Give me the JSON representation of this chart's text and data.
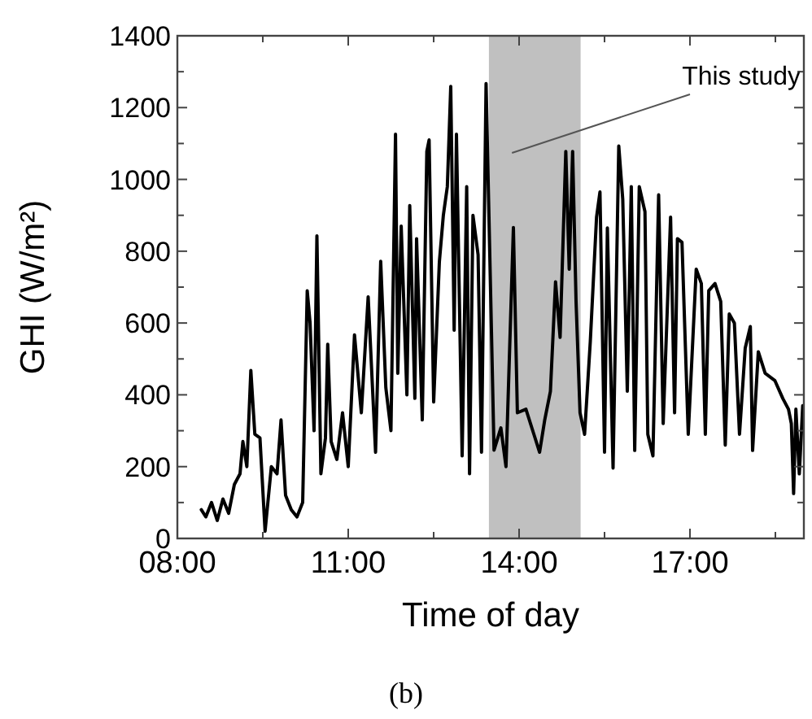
{
  "chart_data": {
    "type": "line",
    "xlabel": "Time of day",
    "ylabel": "GHI (W/m²)",
    "annotations": [
      "(b)"
    ],
    "xlim": [
      8,
      19
    ],
    "ylim": [
      0,
      1400
    ],
    "xticks": [
      {
        "value": 8,
        "label": "08:00"
      },
      {
        "value": 9.5,
        "label": null
      },
      {
        "value": 11,
        "label": "11:00"
      },
      {
        "value": 12.5,
        "label": null
      },
      {
        "value": 14,
        "label": "14:00"
      },
      {
        "value": 15.5,
        "label": null
      },
      {
        "value": 17,
        "label": "17:00"
      },
      {
        "value": 18.5,
        "label": null
      }
    ],
    "yticks": [
      0,
      {
        "value": 100,
        "label": null
      },
      200,
      {
        "value": 300,
        "label": null
      },
      400,
      {
        "value": 500,
        "label": null
      },
      600,
      {
        "value": 700,
        "label": null
      },
      800,
      {
        "value": 900,
        "label": null
      },
      1000,
      {
        "value": 1100,
        "label": null
      },
      1200,
      {
        "value": 1300,
        "label": null
      },
      1400
    ],
    "bands": [
      {
        "axis": "x",
        "from": 13.47,
        "to": 15.08,
        "label": "This study",
        "color": "#c0c0c0"
      }
    ],
    "grid": false,
    "marker": "none",
    "line_style": "solid",
    "series": [
      {
        "color": "#000000",
        "x": [
          8.42,
          8.5,
          8.6,
          8.7,
          8.8,
          8.9,
          9.0,
          9.1,
          9.15,
          9.22,
          9.29,
          9.36,
          9.45,
          9.54,
          9.65,
          9.75,
          9.82,
          9.9,
          10.0,
          10.1,
          10.2,
          10.28,
          10.33,
          10.4,
          10.45,
          10.52,
          10.6,
          10.64,
          10.7,
          10.8,
          10.9,
          11.0,
          11.11,
          11.23,
          11.35,
          11.48,
          11.57,
          11.66,
          11.75,
          11.83,
          11.87,
          11.93,
          12.03,
          12.08,
          12.17,
          12.2,
          12.3,
          12.38,
          12.42,
          12.5,
          12.6,
          12.67,
          12.74,
          12.8,
          12.86,
          12.9,
          13.0,
          13.08,
          13.13,
          13.19,
          13.28,
          13.34,
          13.42,
          13.56,
          13.68,
          13.77,
          13.9,
          13.97,
          14.12,
          14.26,
          14.36,
          14.45,
          14.55,
          14.64,
          14.72,
          14.82,
          14.88,
          14.94,
          15.0,
          15.07,
          15.15,
          15.25,
          15.36,
          15.42,
          15.5,
          15.55,
          15.65,
          15.75,
          15.82,
          15.9,
          15.97,
          16.03,
          16.11,
          16.21,
          16.26,
          16.35,
          16.45,
          16.53,
          16.66,
          16.73,
          16.78,
          16.86,
          16.97,
          17.11,
          17.2,
          17.27,
          17.33,
          17.44,
          17.54,
          17.62,
          17.69,
          17.78,
          17.87,
          17.97,
          18.06,
          18.1,
          18.2,
          18.32,
          18.49,
          18.63,
          18.73,
          18.78,
          18.82,
          18.86,
          18.92,
          18.98
        ],
        "values": [
          80,
          60,
          100,
          50,
          110,
          70,
          150,
          180,
          270,
          200,
          468,
          290,
          280,
          20,
          200,
          180,
          330,
          120,
          80,
          60,
          100,
          690,
          600,
          300,
          843,
          180,
          280,
          541,
          270,
          220,
          350,
          200,
          567,
          350,
          673,
          240,
          772,
          420,
          300,
          1126,
          460,
          870,
          400,
          927,
          390,
          835,
          330,
          1078,
          1110,
          380,
          770,
          900,
          980,
          1259,
          580,
          1126,
          230,
          980,
          180,
          900,
          790,
          240,
          1267,
          246,
          308,
          200,
          866,
          350,
          360,
          290,
          240,
          330,
          410,
          715,
          560,
          1078,
          750,
          1078,
          660,
          350,
          290,
          548,
          895,
          965,
          240,
          865,
          196,
          1093,
          945,
          410,
          980,
          245,
          980,
          910,
          290,
          230,
          957,
          320,
          895,
          350,
          835,
          825,
          290,
          750,
          710,
          290,
          690,
          710,
          660,
          260,
          625,
          600,
          290,
          530,
          590,
          245,
          520,
          460,
          440,
          390,
          360,
          320,
          125,
          360,
          180,
          370
        ]
      }
    ]
  }
}
